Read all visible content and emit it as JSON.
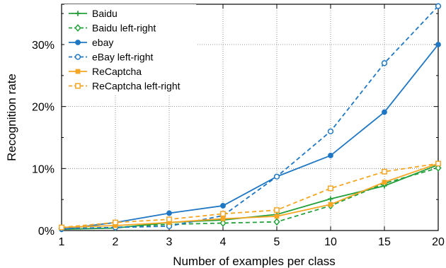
{
  "chart_data": {
    "type": "line",
    "xlabel": "Number of examples per class",
    "ylabel": "Recognition rate",
    "categories": [
      "1",
      "2",
      "3",
      "4",
      "5",
      "10",
      "15",
      "20"
    ],
    "y_ticks": [
      "0%",
      "10%",
      "20%",
      "30%"
    ],
    "ylim": [
      0,
      36.5
    ],
    "grid": "dotted",
    "legend_position": "top-left",
    "series": [
      {
        "name": "Baidu",
        "color": "#22a03a",
        "dashed": false,
        "marker": "plus",
        "values": [
          0.2,
          0.4,
          1.3,
          1.7,
          2.6,
          5.1,
          7.2,
          10.6
        ]
      },
      {
        "name": "Baidu left-right",
        "color": "#22a03a",
        "dashed": true,
        "marker": "diamond-open",
        "values": [
          0.3,
          0.5,
          1.0,
          1.2,
          1.4,
          4.0,
          7.6,
          10.1
        ]
      },
      {
        "name": "ebay",
        "color": "#1f77c4",
        "dashed": false,
        "marker": "circle-filled",
        "values": [
          0.2,
          1.3,
          2.8,
          4.0,
          8.7,
          12.1,
          19.1,
          30.0
        ]
      },
      {
        "name": "eBay left-right",
        "color": "#1f77c4",
        "dashed": true,
        "marker": "circle-open",
        "values": [
          0.3,
          0.5,
          0.7,
          2.4,
          8.7,
          16.0,
          27.0,
          36.2
        ]
      },
      {
        "name": "ReCaptcha",
        "color": "#f5a623",
        "dashed": false,
        "marker": "square-filled",
        "values": [
          0.5,
          0.8,
          1.3,
          1.9,
          2.3,
          4.2,
          7.8,
          10.8
        ]
      },
      {
        "name": "ReCaptcha left-right",
        "color": "#f5a623",
        "dashed": true,
        "marker": "square-open",
        "values": [
          0.5,
          1.3,
          1.8,
          2.7,
          3.3,
          6.8,
          9.5,
          10.8
        ]
      }
    ]
  }
}
